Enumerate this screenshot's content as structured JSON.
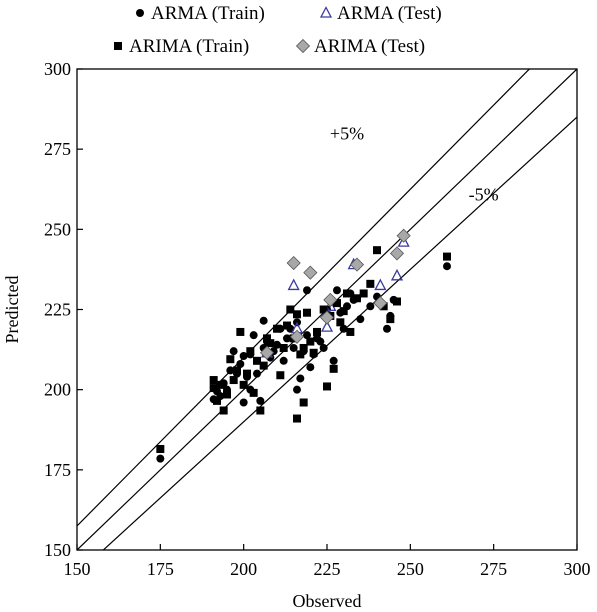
{
  "chart_data": {
    "type": "scatter",
    "title": "",
    "xlabel": "Observed",
    "ylabel": "Predicted",
    "xlim": [
      150,
      300
    ],
    "ylim": [
      150,
      300
    ],
    "xticks": [
      150,
      175,
      200,
      225,
      250,
      275,
      300
    ],
    "yticks": [
      150,
      175,
      200,
      225,
      250,
      275,
      300
    ],
    "grid": false,
    "legend_position": "top",
    "reference_lines": [
      {
        "label": "+5%",
        "slope": 1.05
      },
      {
        "label": "",
        "slope": 1.0
      },
      {
        "label": "-5%",
        "slope": 0.95
      }
    ],
    "series": [
      {
        "name": "ARMA (Train)",
        "marker": "circle",
        "color": "#000000",
        "points": [
          [
            175,
            178.5
          ],
          [
            191,
            197
          ],
          [
            192,
            199.5
          ],
          [
            193,
            198
          ],
          [
            194,
            202
          ],
          [
            195,
            200
          ],
          [
            196,
            206
          ],
          [
            197,
            212
          ],
          [
            198,
            205
          ],
          [
            199,
            208
          ],
          [
            200,
            196
          ],
          [
            200,
            210.5
          ],
          [
            201,
            204
          ],
          [
            202,
            200
          ],
          [
            202,
            211
          ],
          [
            203,
            217
          ],
          [
            204,
            205
          ],
          [
            205,
            196.5
          ],
          [
            206,
            213
          ],
          [
            206,
            221.5
          ],
          [
            207,
            215
          ],
          [
            208,
            210
          ],
          [
            209,
            212
          ],
          [
            210,
            214
          ],
          [
            211,
            219
          ],
          [
            212,
            209
          ],
          [
            213,
            216
          ],
          [
            214,
            219
          ],
          [
            215,
            213
          ],
          [
            216,
            200
          ],
          [
            216,
            221
          ],
          [
            217,
            203.5
          ],
          [
            218,
            212
          ],
          [
            219,
            217
          ],
          [
            219,
            231
          ],
          [
            220,
            207
          ],
          [
            221,
            211
          ],
          [
            222,
            216
          ],
          [
            223,
            215
          ],
          [
            224,
            213
          ],
          [
            225,
            225
          ],
          [
            226,
            228
          ],
          [
            227,
            209
          ],
          [
            228,
            231
          ],
          [
            229,
            224
          ],
          [
            230,
            219
          ],
          [
            231,
            226
          ],
          [
            232,
            230
          ],
          [
            233,
            228
          ],
          [
            235,
            222
          ],
          [
            238,
            226
          ],
          [
            240,
            229
          ],
          [
            243,
            219
          ],
          [
            244,
            223
          ],
          [
            245,
            228
          ],
          [
            261,
            238.5
          ]
        ]
      },
      {
        "name": "ARMA (Test)",
        "marker": "triangle",
        "color": "#3a3aa0",
        "points": [
          [
            207,
            211.5
          ],
          [
            215,
            232.5
          ],
          [
            216,
            219
          ],
          [
            225,
            219.5
          ],
          [
            225,
            224
          ],
          [
            226,
            226
          ],
          [
            233,
            239
          ],
          [
            241,
            232.5
          ],
          [
            246,
            235.5
          ],
          [
            248,
            246
          ]
        ]
      },
      {
        "name": "ARIMA (Train)",
        "marker": "square",
        "color": "#000000",
        "points": [
          [
            175,
            181.5
          ],
          [
            191,
            203
          ],
          [
            191,
            200.5
          ],
          [
            192,
            196.5
          ],
          [
            193,
            201.5
          ],
          [
            194,
            193.5
          ],
          [
            195,
            198.5
          ],
          [
            196,
            209.5
          ],
          [
            197,
            203
          ],
          [
            198,
            206
          ],
          [
            199,
            218
          ],
          [
            200,
            201.5
          ],
          [
            201,
            205
          ],
          [
            202,
            212
          ],
          [
            203,
            199
          ],
          [
            204,
            209
          ],
          [
            205,
            193.5
          ],
          [
            206,
            207.5
          ],
          [
            207,
            216
          ],
          [
            208,
            214.5
          ],
          [
            210,
            219
          ],
          [
            211,
            204.5
          ],
          [
            212,
            213
          ],
          [
            213,
            220
          ],
          [
            214,
            225
          ],
          [
            215,
            216
          ],
          [
            216,
            191
          ],
          [
            216,
            223.5
          ],
          [
            217,
            211
          ],
          [
            218,
            196
          ],
          [
            218,
            213
          ],
          [
            219,
            224
          ],
          [
            220,
            215
          ],
          [
            221,
            211.5
          ],
          [
            222,
            218
          ],
          [
            224,
            225
          ],
          [
            225,
            201
          ],
          [
            226,
            223
          ],
          [
            227,
            206.5
          ],
          [
            228,
            227
          ],
          [
            229,
            221
          ],
          [
            230,
            224.5
          ],
          [
            231,
            230
          ],
          [
            232,
            218
          ],
          [
            234,
            228.5
          ],
          [
            236,
            230
          ],
          [
            238,
            233
          ],
          [
            240,
            243.5
          ],
          [
            242,
            226
          ],
          [
            244,
            222
          ],
          [
            246,
            227.5
          ],
          [
            261,
            241.5
          ]
        ]
      },
      {
        "name": "ARIMA (Test)",
        "marker": "diamond",
        "color": "#a8a8a8",
        "points": [
          [
            207,
            211.5
          ],
          [
            215,
            239.5
          ],
          [
            216,
            216.5
          ],
          [
            220,
            236.5
          ],
          [
            225,
            222.5
          ],
          [
            226,
            228
          ],
          [
            234,
            239
          ],
          [
            241,
            227
          ],
          [
            246,
            242.5
          ],
          [
            248,
            248
          ]
        ]
      }
    ]
  }
}
